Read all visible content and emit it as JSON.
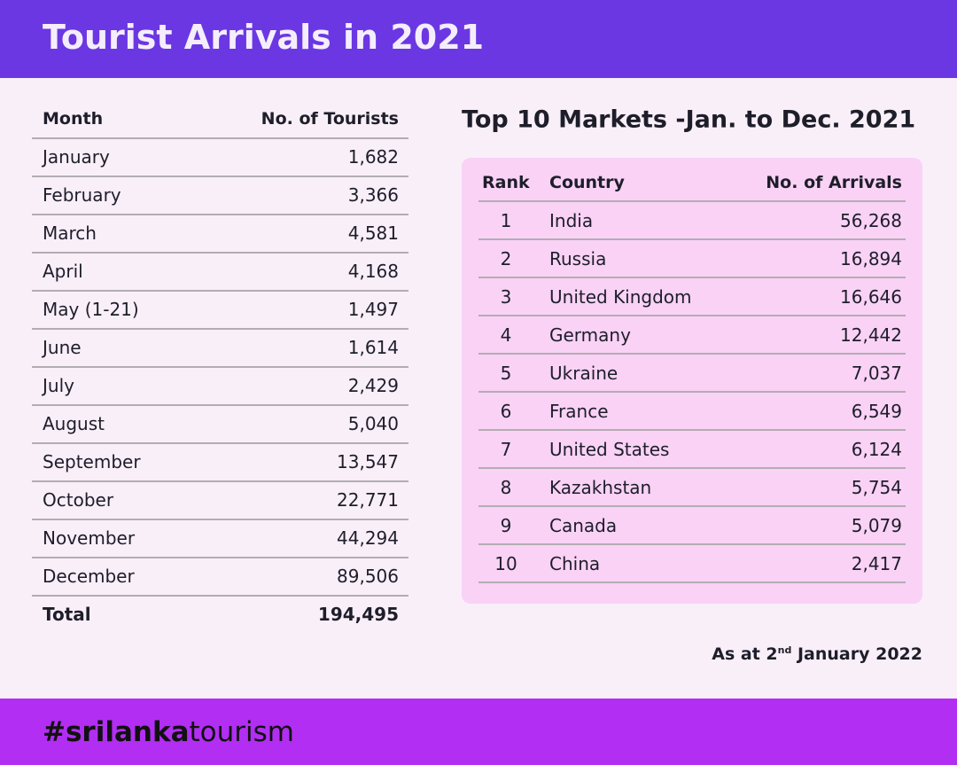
{
  "header": {
    "title": "Tourist Arrivals in 2021"
  },
  "monthly_table": {
    "columns": [
      "Month",
      "No. of Tourists"
    ],
    "rows": [
      [
        "January",
        "1,682"
      ],
      [
        "February",
        "3,366"
      ],
      [
        "March",
        "4,581"
      ],
      [
        "April",
        "4,168"
      ],
      [
        "May (1-21)",
        "1,497"
      ],
      [
        "June",
        "1,614"
      ],
      [
        "July",
        "2,429"
      ],
      [
        "August",
        "5,040"
      ],
      [
        "September",
        "13,547"
      ],
      [
        "October",
        "22,771"
      ],
      [
        "November",
        "44,294"
      ],
      [
        "December",
        "89,506"
      ]
    ],
    "total": [
      "Total",
      "194,495"
    ]
  },
  "markets": {
    "title": "Top 10 Markets -Jan. to Dec. 2021",
    "columns": [
      "Rank",
      "Country",
      "No. of Arrivals"
    ],
    "rows": [
      [
        "1",
        "India",
        "56,268"
      ],
      [
        "2",
        "Russia",
        "16,894"
      ],
      [
        "3",
        "United Kingdom",
        "16,646"
      ],
      [
        "4",
        "Germany",
        "12,442"
      ],
      [
        "5",
        "Ukraine",
        "7,037"
      ],
      [
        "6",
        "France",
        "6,549"
      ],
      [
        "7",
        "United States",
        "6,124"
      ],
      [
        "8",
        "Kazakhstan",
        "5,754"
      ],
      [
        "9",
        "Canada",
        "5,079"
      ],
      [
        "10",
        "China",
        "2,417"
      ]
    ]
  },
  "note": {
    "prefix": "As at 2",
    "sup": "nd",
    "suffix": " January 2022"
  },
  "footer": {
    "bold": "#srilanka",
    "light": "tourism"
  }
}
